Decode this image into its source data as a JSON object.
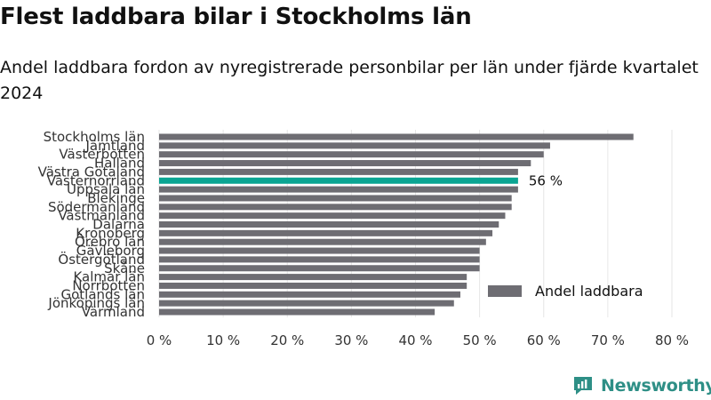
{
  "title": "Flest laddbara bilar i Stockholms län",
  "subtitle": "Andel laddbara fordon av nyregistrerade personbilar per län under fjärde kvartalet 2024",
  "brand": {
    "name": "Newsworthy",
    "icon": "newsworthy-logo-icon"
  },
  "colors": {
    "bar": "#6e6d73",
    "highlight": "#0aa593",
    "grid": "#e6e6e6",
    "text": "#333333"
  },
  "chart_data": {
    "type": "bar",
    "orientation": "horizontal",
    "categories": [
      "Stockholms län",
      "Jämtland",
      "Västerbotten",
      "Halland",
      "Västra Götaland",
      "Västernorrland",
      "Uppsala län",
      "Blekinge",
      "Södermanland",
      "Västmanland",
      "Dalarna",
      "Kronoberg",
      "Örebro län",
      "Gävleborg",
      "Östergötland",
      "Skåne",
      "Kalmar län",
      "Norrbotten",
      "Gotlands län",
      "Jönköpings län",
      "Värmland"
    ],
    "series": [
      {
        "name": "Andel laddbara",
        "values": [
          74,
          61,
          60,
          58,
          56,
          56,
          56,
          55,
          55,
          54,
          53,
          52,
          51,
          50,
          50,
          50,
          48,
          48,
          47,
          46,
          43
        ]
      }
    ],
    "highlight": {
      "category": "Västernorrland",
      "label": "56 %"
    },
    "xlim": [
      0,
      80
    ],
    "xticks": [
      "0 %",
      "10 %",
      "20 %",
      "30 %",
      "40 %",
      "50 %",
      "60 %",
      "70 %",
      "80 %"
    ],
    "grid": "vertical",
    "legend": {
      "position": "bottom-right",
      "label": "Andel laddbara"
    }
  }
}
